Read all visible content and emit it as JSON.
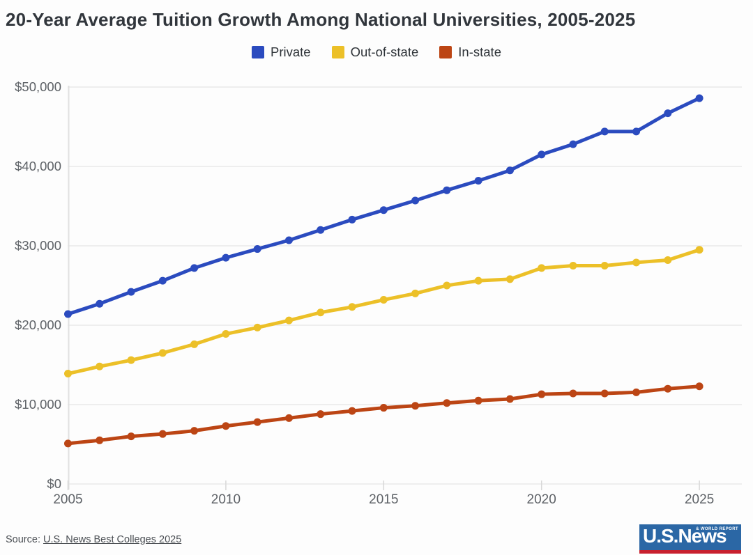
{
  "page": {
    "background_color": "#fdfdfd"
  },
  "chart_data": {
    "type": "line",
    "title": "20-Year Average Tuition Growth Among National Universities, 2005-2025",
    "x": [
      2005,
      2006,
      2007,
      2008,
      2009,
      2010,
      2011,
      2012,
      2013,
      2014,
      2015,
      2016,
      2017,
      2018,
      2019,
      2020,
      2021,
      2022,
      2023,
      2024,
      2025
    ],
    "series": [
      {
        "name": "Private",
        "color": "#2b4bbf",
        "values": [
          21400,
          22700,
          24200,
          25600,
          27200,
          28500,
          29600,
          30700,
          32000,
          33300,
          34500,
          35700,
          37000,
          38200,
          39500,
          41500,
          42800,
          44400,
          44400,
          46700,
          48600
        ]
      },
      {
        "name": "Out-of-state",
        "color": "#ecc028",
        "values": [
          13900,
          14800,
          15600,
          16500,
          17600,
          18900,
          19700,
          20600,
          21600,
          22300,
          23200,
          24000,
          25000,
          25600,
          25800,
          27200,
          27500,
          27500,
          27900,
          28200,
          29500
        ]
      },
      {
        "name": "In-state",
        "color": "#bc4514",
        "values": [
          5100,
          5500,
          6000,
          6300,
          6700,
          7300,
          7800,
          8300,
          8800,
          9200,
          9600,
          9850,
          10200,
          10500,
          10700,
          11300,
          11400,
          11400,
          11550,
          12000,
          12300
        ]
      }
    ],
    "xlabel": "",
    "ylabel": "",
    "ylim": [
      0,
      50000
    ],
    "xlim": [
      2005,
      2025
    ],
    "y_tick_values": [
      0,
      10000,
      20000,
      30000,
      40000,
      50000
    ],
    "y_tick_labels": [
      "$0",
      "$10,000",
      "$20,000",
      "$30,000",
      "$40,000",
      "$50,000"
    ],
    "x_tick_values": [
      2005,
      2010,
      2015,
      2020,
      2025
    ],
    "x_tick_labels": [
      "2005",
      "2010",
      "2015",
      "2020",
      "2025"
    ],
    "grid": "horizontal gridlines on",
    "grid_color": "#eaeaea",
    "axis_line_color": "#e0e0e0",
    "tick_color": "#d8d8d8",
    "legend_position": "top center"
  },
  "source": {
    "prefix": "Source: ",
    "link_text": "U.S. News Best Colleges 2025"
  },
  "logo": {
    "main": "U.S.News",
    "sub": "& WORLD REPORT",
    "bg_color": "#2b67a5",
    "bar_color": "#c8202f"
  }
}
